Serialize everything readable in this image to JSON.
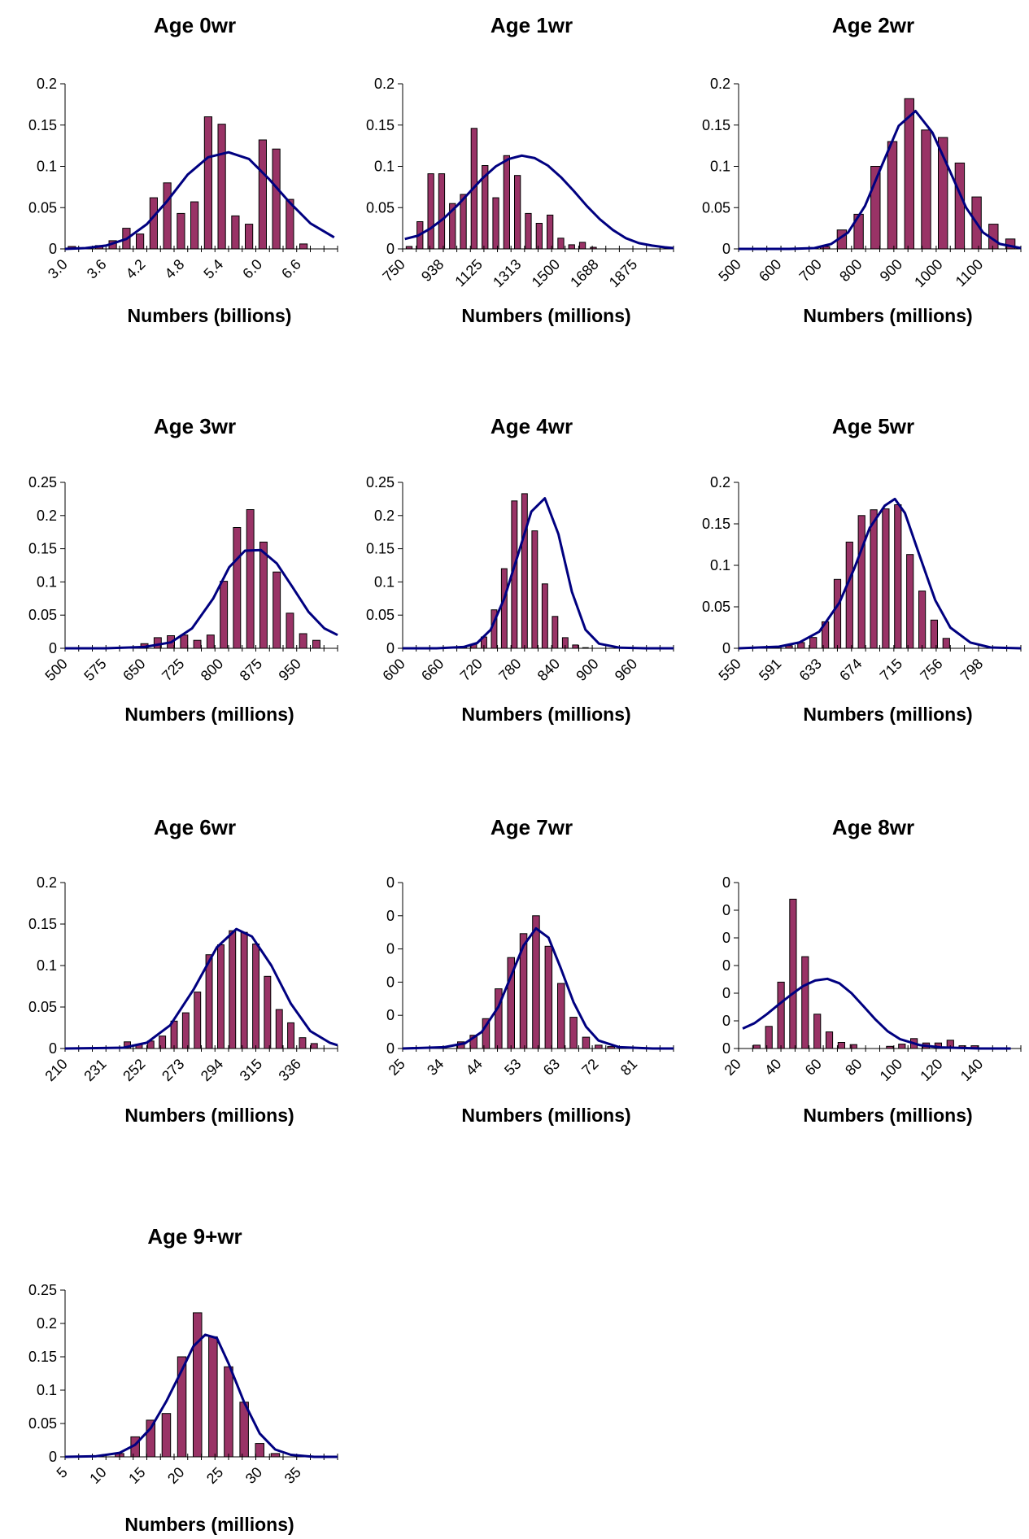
{
  "colors": {
    "bar_fill": "#993366",
    "bar_stroke": "#000000",
    "line": "#000080",
    "axis": "#000000"
  },
  "chart_data": [
    {
      "type": "bar",
      "title": "Age 0wr",
      "xlabel": "Numbers (billions)",
      "ylabel": "",
      "ylim": [
        0,
        0.2
      ],
      "ytick_labels": [
        "0",
        "0.05",
        "0.1",
        "0.15",
        "0.2"
      ],
      "xtick_labels": [
        "3.0",
        "3.6",
        "4.2",
        "4.8",
        "5.4",
        "6.0",
        "6.6"
      ],
      "x_range": [
        3.0,
        7.0
      ],
      "bins": [
        3.1,
        3.3,
        3.5,
        3.7,
        3.9,
        4.1,
        4.3,
        4.5,
        4.7,
        4.9,
        5.1,
        5.3,
        5.5,
        5.7,
        5.9,
        6.1,
        6.3,
        6.5,
        6.7
      ],
      "series": [
        {
          "type": "bar",
          "values": [
            0.003,
            0.001,
            0.004,
            0.01,
            0.025,
            0.018,
            0.062,
            0.08,
            0.043,
            0.057,
            0.16,
            0.151,
            0.04,
            0.03,
            0.132,
            0.121,
            0.06,
            0.006,
            0
          ]
        },
        {
          "type": "line",
          "x": [
            3.0,
            3.3,
            3.6,
            3.9,
            4.2,
            4.5,
            4.8,
            5.1,
            5.4,
            5.7,
            6.0,
            6.3,
            6.6,
            6.95
          ],
          "values": [
            0,
            0.001,
            0.004,
            0.012,
            0.03,
            0.058,
            0.09,
            0.111,
            0.117,
            0.109,
            0.084,
            0.056,
            0.031,
            0.014
          ]
        }
      ],
      "grid": false,
      "legend": "none"
    },
    {
      "type": "bar",
      "title": "Age 1wr",
      "xlabel": "Numbers (millions)",
      "ylabel": "",
      "ylim": [
        0,
        0.2
      ],
      "ytick_labels": [
        "0",
        "0.05",
        "0.1",
        "0.15",
        "0.2"
      ],
      "xtick_labels": [
        "750",
        "938",
        "1125",
        "1313",
        "1500",
        "1688",
        "1875"
      ],
      "x_range": [
        750,
        2000
      ],
      "bins": [
        780,
        830,
        880,
        930,
        980,
        1030,
        1080,
        1130,
        1180,
        1230,
        1280,
        1330,
        1380,
        1430,
        1480,
        1530,
        1580,
        1630,
        1680,
        1730,
        1780,
        1830,
        1880
      ],
      "series": [
        {
          "type": "bar",
          "values": [
            0.003,
            0.033,
            0.091,
            0.091,
            0.055,
            0.066,
            0.146,
            0.101,
            0.062,
            0.113,
            0.089,
            0.043,
            0.031,
            0.041,
            0.013,
            0.005,
            0.008,
            0.002,
            0,
            0,
            0,
            0,
            0
          ]
        },
        {
          "type": "line",
          "x": [
            760,
            820,
            880,
            940,
            1000,
            1060,
            1120,
            1180,
            1240,
            1300,
            1360,
            1420,
            1480,
            1540,
            1600,
            1660,
            1720,
            1780,
            1840,
            1900,
            1960,
            2000
          ],
          "values": [
            0.012,
            0.016,
            0.025,
            0.037,
            0.052,
            0.069,
            0.086,
            0.1,
            0.109,
            0.113,
            0.11,
            0.101,
            0.087,
            0.07,
            0.052,
            0.036,
            0.023,
            0.013,
            0.007,
            0.004,
            0.002,
            0.001
          ]
        }
      ],
      "grid": false,
      "legend": "none"
    },
    {
      "type": "bar",
      "title": "Age 2wr",
      "xlabel": "Numbers (millions)",
      "ylabel": "",
      "ylim": [
        0,
        0.2
      ],
      "ytick_labels": [
        "0",
        "0.05",
        "0.1",
        "0.15",
        "0.2"
      ],
      "xtick_labels": [
        "500",
        "600",
        "700",
        "800",
        "900",
        "1000",
        "1100"
      ],
      "x_range": [
        500,
        1170
      ],
      "bins": [
        705,
        745,
        785,
        825,
        865,
        905,
        945,
        985,
        1025,
        1065,
        1105,
        1145
      ],
      "series": [
        {
          "type": "bar",
          "values": [
            0.003,
            0.023,
            0.042,
            0.1,
            0.13,
            0.182,
            0.144,
            0.135,
            0.104,
            0.063,
            0.03,
            0.012
          ]
        },
        {
          "type": "line",
          "x": [
            500,
            560,
            620,
            680,
            720,
            760,
            800,
            840,
            880,
            920,
            960,
            1000,
            1040,
            1080,
            1120,
            1170
          ],
          "values": [
            0,
            0,
            0,
            0.001,
            0.006,
            0.02,
            0.052,
            0.101,
            0.149,
            0.167,
            0.141,
            0.096,
            0.05,
            0.02,
            0.006,
            0.001
          ]
        }
      ],
      "grid": false,
      "legend": "none"
    },
    {
      "type": "bar",
      "title": "Age 3wr",
      "xlabel": "Numbers (millions)",
      "ylabel": "",
      "ylim": [
        0,
        0.25
      ],
      "ytick_labels": [
        "0",
        "0.05",
        "0.1",
        "0.15",
        "0.2",
        "0.25"
      ],
      "xtick_labels": [
        "500",
        "575",
        "650",
        "725",
        "800",
        "875",
        "950"
      ],
      "x_range": [
        500,
        1015
      ],
      "bins": [
        650,
        675,
        700,
        725,
        750,
        775,
        800,
        825,
        850,
        875,
        900,
        925,
        950,
        975,
        1000
      ],
      "series": [
        {
          "type": "bar",
          "values": [
            0.007,
            0.016,
            0.019,
            0.02,
            0.012,
            0.02,
            0.101,
            0.182,
            0.209,
            0.16,
            0.115,
            0.053,
            0.022,
            0.012,
            0
          ]
        },
        {
          "type": "line",
          "x": [
            500,
            575,
            650,
            700,
            740,
            780,
            810,
            840,
            870,
            900,
            930,
            960,
            990,
            1015
          ],
          "values": [
            0,
            0,
            0.002,
            0.009,
            0.03,
            0.075,
            0.122,
            0.147,
            0.148,
            0.128,
            0.092,
            0.055,
            0.03,
            0.02
          ]
        }
      ],
      "grid": false,
      "legend": "none"
    },
    {
      "type": "bar",
      "title": "Age 4wr",
      "xlabel": "Numbers (millions)",
      "ylabel": "",
      "ylim": [
        0,
        0.25
      ],
      "ytick_labels": [
        "0",
        "0.05",
        "0.1",
        "0.15",
        "0.2",
        "0.25"
      ],
      "xtick_labels": [
        "600",
        "660",
        "720",
        "780",
        "840",
        "900",
        "960"
      ],
      "x_range": [
        600,
        1000
      ],
      "bins": [
        690,
        705,
        720,
        735,
        750,
        765,
        780,
        795,
        810,
        825,
        840,
        855,
        870,
        885
      ],
      "series": [
        {
          "type": "bar",
          "values": [
            0.003,
            0.006,
            0.017,
            0.058,
            0.12,
            0.222,
            0.233,
            0.177,
            0.097,
            0.048,
            0.016,
            0.005,
            0.001,
            0
          ]
        },
        {
          "type": "line",
          "x": [
            600,
            650,
            690,
            710,
            730,
            750,
            770,
            790,
            810,
            830,
            850,
            870,
            890,
            920,
            960,
            1000
          ],
          "values": [
            0,
            0,
            0.002,
            0.008,
            0.028,
            0.075,
            0.14,
            0.206,
            0.226,
            0.172,
            0.085,
            0.028,
            0.007,
            0.001,
            0,
            0
          ]
        }
      ],
      "grid": false,
      "legend": "none"
    },
    {
      "type": "bar",
      "title": "Age 5wr",
      "xlabel": "Numbers (millions)",
      "ylabel": "",
      "ylim": [
        0,
        0.2
      ],
      "ytick_labels": [
        "0",
        "0.05",
        "0.1",
        "0.15",
        "0.2"
      ],
      "xtick_labels": [
        "550",
        "591",
        "633",
        "674",
        "715",
        "756",
        "798"
      ],
      "x_range": [
        550,
        830
      ],
      "bins": [
        600,
        612,
        624,
        636,
        648,
        660,
        672,
        684,
        696,
        708,
        720,
        732,
        744,
        756
      ],
      "series": [
        {
          "type": "bar",
          "values": [
            0.003,
            0.007,
            0.013,
            0.032,
            0.083,
            0.128,
            0.16,
            0.167,
            0.168,
            0.173,
            0.113,
            0.069,
            0.034,
            0.012
          ]
        },
        {
          "type": "line",
          "x": [
            550,
            590,
            610,
            630,
            650,
            665,
            680,
            695,
            705,
            715,
            730,
            745,
            760,
            780,
            800,
            830
          ],
          "values": [
            0,
            0.002,
            0.007,
            0.02,
            0.055,
            0.097,
            0.145,
            0.172,
            0.18,
            0.163,
            0.11,
            0.058,
            0.025,
            0.007,
            0.001,
            0
          ]
        }
      ],
      "grid": false,
      "legend": "none"
    },
    {
      "type": "bar",
      "title": "Age 6wr",
      "xlabel": "Numbers (millions)",
      "ylabel": "",
      "ylim": [
        0,
        0.2
      ],
      "ytick_labels": [
        "0",
        "0.05",
        "0.1",
        "0.15",
        "0.2"
      ],
      "xtick_labels": [
        "210",
        "231",
        "252",
        "273",
        "294",
        "315",
        "336"
      ],
      "x_range": [
        210,
        350
      ],
      "bins": [
        242,
        248,
        254,
        260,
        266,
        272,
        278,
        284,
        290,
        296,
        302,
        308,
        314,
        320,
        326,
        332,
        338,
        344,
        350
      ],
      "series": [
        {
          "type": "bar",
          "values": [
            0.008,
            0.005,
            0.009,
            0.015,
            0.033,
            0.043,
            0.068,
            0.113,
            0.125,
            0.142,
            0.14,
            0.126,
            0.087,
            0.047,
            0.031,
            0.013,
            0.006,
            0,
            0
          ]
        },
        {
          "type": "line",
          "x": [
            210,
            240,
            252,
            264,
            276,
            288,
            298,
            306,
            316,
            326,
            336,
            346,
            350
          ],
          "values": [
            0,
            0.001,
            0.007,
            0.028,
            0.071,
            0.122,
            0.144,
            0.135,
            0.1,
            0.054,
            0.021,
            0.007,
            0.004
          ]
        }
      ],
      "grid": false,
      "legend": "none"
    },
    {
      "type": "bar",
      "title": "Age 7wr",
      "xlabel": "Numbers (millions)",
      "ylabel": "",
      "ylim": [
        0,
        0.25
      ],
      "ytick_labels": [
        "0",
        "0",
        "0",
        "0",
        "0",
        "0"
      ],
      "xtick_labels": [
        "25",
        "34",
        "44",
        "53",
        "63",
        "72",
        "81"
      ],
      "x_range": [
        25,
        90
      ],
      "bins": [
        39,
        42,
        45,
        48,
        51,
        54,
        57,
        60,
        63,
        66,
        69,
        72,
        75
      ],
      "series": [
        {
          "type": "bar",
          "values": [
            0.01,
            0.02,
            0.045,
            0.09,
            0.137,
            0.173,
            0.2,
            0.154,
            0.098,
            0.047,
            0.017,
            0.005,
            0.003
          ]
        },
        {
          "type": "line",
          "x": [
            25,
            35,
            40,
            44,
            48,
            51,
            54,
            57,
            60,
            63,
            66,
            69,
            72,
            77,
            85,
            90
          ],
          "values": [
            0,
            0.002,
            0.008,
            0.025,
            0.063,
            0.109,
            0.155,
            0.181,
            0.167,
            0.12,
            0.07,
            0.033,
            0.012,
            0.002,
            0,
            0
          ]
        }
      ],
      "grid": false,
      "legend": "none"
    },
    {
      "type": "bar",
      "title": "Age 8wr",
      "xlabel": "Numbers (millions)",
      "ylabel": "",
      "ylim": [
        0,
        0.3
      ],
      "ytick_labels": [
        "0",
        "0",
        "0",
        "0",
        "0",
        "0",
        "0"
      ],
      "xtick_labels": [
        "20",
        "40",
        "60",
        "80",
        "100",
        "120",
        "140"
      ],
      "x_range": [
        20,
        160
      ],
      "bins": [
        29,
        35,
        41,
        47,
        53,
        59,
        65,
        71,
        77,
        83,
        89,
        95,
        101,
        107,
        113,
        119,
        125,
        131,
        137,
        143,
        149,
        155
      ],
      "series": [
        {
          "type": "bar",
          "values": [
            0.006,
            0.04,
            0.12,
            0.27,
            0.166,
            0.062,
            0.03,
            0.011,
            0.007,
            0,
            0,
            0.004,
            0.008,
            0.018,
            0.01,
            0.01,
            0.015,
            0.005,
            0.005,
            0,
            0,
            0
          ]
        },
        {
          "type": "line",
          "x": [
            22,
            28,
            34,
            40,
            46,
            52,
            58,
            64,
            70,
            76,
            82,
            88,
            94,
            100,
            110,
            120,
            140,
            155
          ],
          "values": [
            0.036,
            0.046,
            0.062,
            0.08,
            0.097,
            0.113,
            0.123,
            0.126,
            0.118,
            0.1,
            0.076,
            0.052,
            0.031,
            0.017,
            0.006,
            0.002,
            0,
            0
          ]
        }
      ],
      "grid": false,
      "legend": "none"
    },
    {
      "type": "bar",
      "title": "Age 9+wr",
      "xlabel": "Numbers (millions)",
      "ylabel": "",
      "ylim": [
        0,
        0.25
      ],
      "ytick_labels": [
        "0",
        "0.05",
        "0.1",
        "0.15",
        "0.2",
        "0.25"
      ],
      "xtick_labels": [
        "5",
        "10",
        "15",
        "20",
        "25",
        "30",
        "35"
      ],
      "x_range": [
        5,
        40
      ],
      "bins": [
        12,
        14,
        16,
        18,
        20,
        22,
        24,
        26,
        28,
        30,
        32
      ],
      "series": [
        {
          "type": "bar",
          "values": [
            0.005,
            0.03,
            0.055,
            0.065,
            0.15,
            0.216,
            0.18,
            0.135,
            0.082,
            0.02,
            0.005
          ]
        },
        {
          "type": "line",
          "x": [
            5,
            9,
            12,
            14,
            16,
            18,
            20,
            21.5,
            23,
            24.5,
            26,
            28,
            30,
            32,
            34,
            37,
            40
          ],
          "values": [
            0,
            0.001,
            0.006,
            0.018,
            0.043,
            0.083,
            0.13,
            0.166,
            0.183,
            0.178,
            0.14,
            0.082,
            0.035,
            0.011,
            0.003,
            0,
            0
          ]
        }
      ],
      "grid": false,
      "legend": "none"
    }
  ]
}
